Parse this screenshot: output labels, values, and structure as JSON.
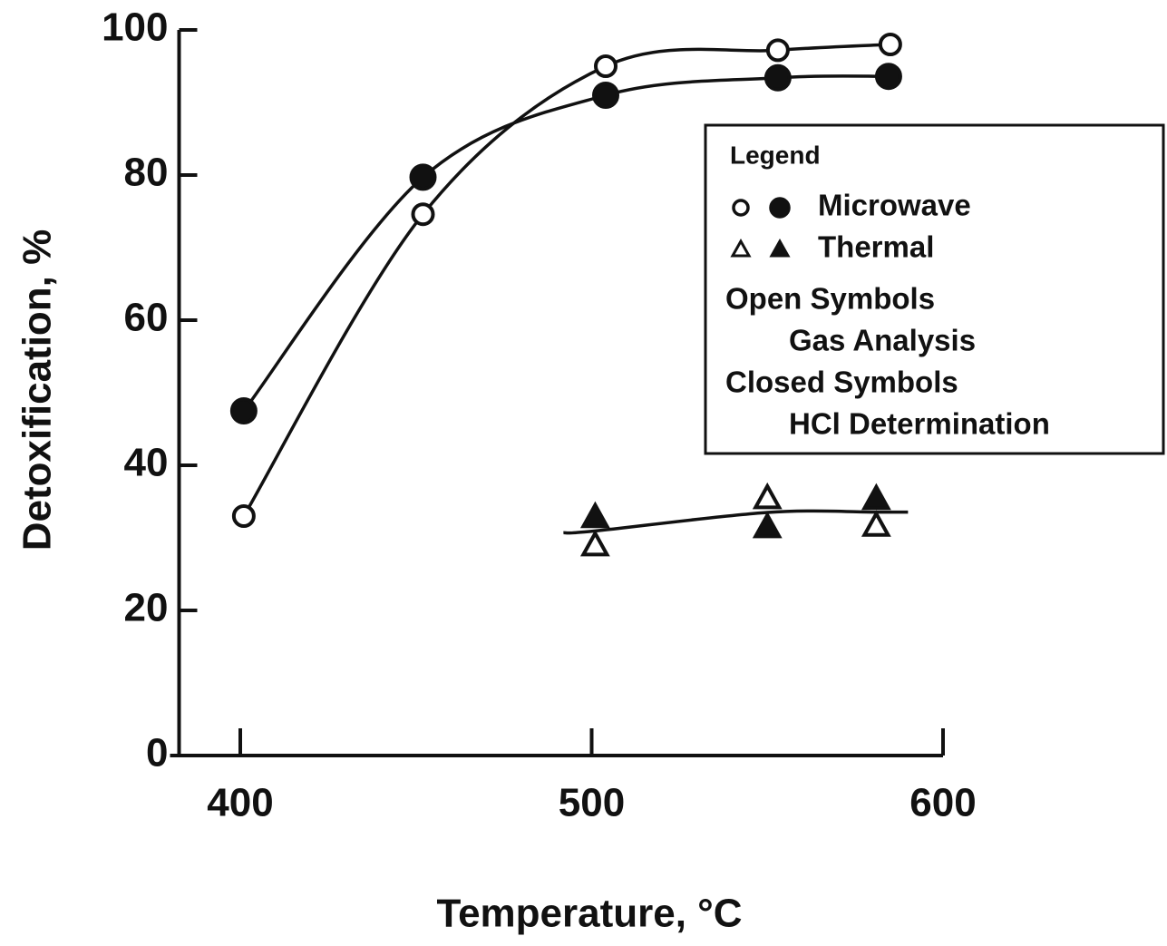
{
  "chart_data": {
    "type": "line",
    "x_label": "Temperature, °C",
    "y_label": "Detoxification, %",
    "xlim": [
      380,
      600
    ],
    "xticks": [
      400,
      500,
      600
    ],
    "ylim": [
      0,
      100
    ],
    "yticks": [
      0,
      20,
      40,
      60,
      80,
      100
    ],
    "legend": {
      "title": "Legend",
      "notes": [
        "Open Symbols",
        "Gas Analysis",
        "Closed Symbols",
        "HCl Determination"
      ]
    },
    "series": [
      {
        "name": "Microwave",
        "marker": "circle",
        "color": "#111",
        "open": {
          "x": [
            401,
            452,
            504,
            553,
            585
          ],
          "values": [
            33,
            74.6,
            95,
            97.2,
            98
          ]
        },
        "closed": {
          "x": [
            401,
            452,
            504,
            553,
            584.5
          ],
          "values": [
            47.5,
            79.7,
            91,
            93.4,
            93.6
          ]
        }
      },
      {
        "name": "Thermal",
        "marker": "triangle",
        "color": "#111",
        "open": {
          "x": [
            501,
            550,
            581
          ],
          "values": [
            29,
            35.5,
            31.7
          ]
        },
        "closed": {
          "x": [
            501,
            550,
            581
          ],
          "values": [
            32.9,
            31.5,
            35.4
          ]
        }
      }
    ]
  }
}
